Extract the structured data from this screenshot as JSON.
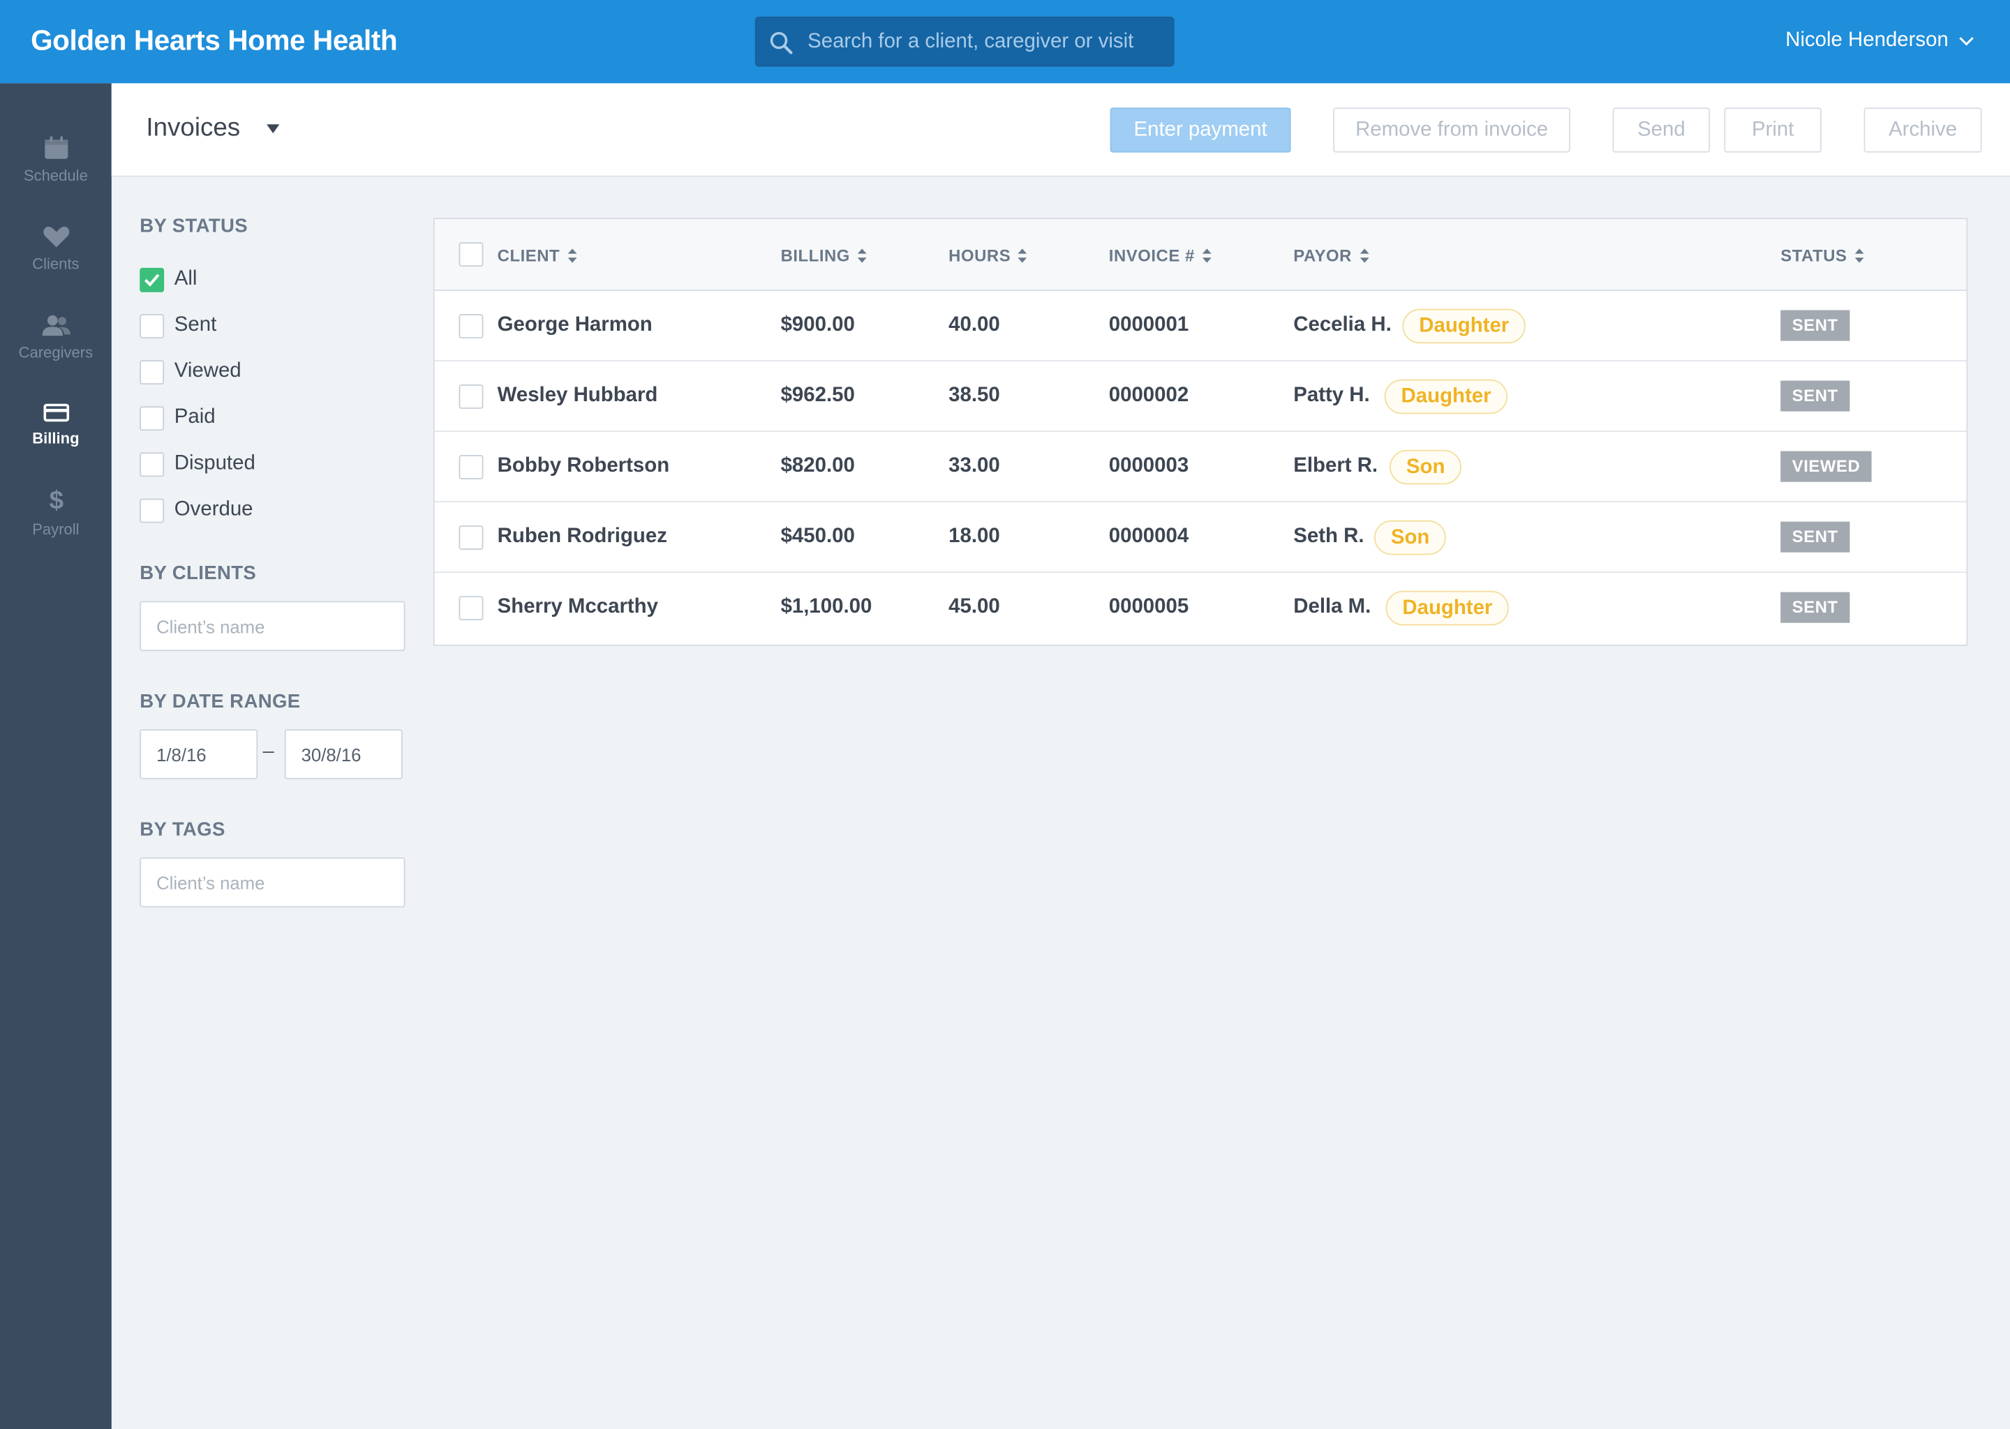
{
  "app": {
    "title": "Golden Hearts Home Health",
    "search_placeholder": "Search for a client, caregiver or visit",
    "user_name": "Nicole Henderson"
  },
  "sidebar": {
    "items": [
      {
        "label": "Schedule",
        "icon": "calendar-icon",
        "active": false
      },
      {
        "label": "Clients",
        "icon": "heart-icon",
        "active": false
      },
      {
        "label": "Caregivers",
        "icon": "people-icon",
        "active": false
      },
      {
        "label": "Billing",
        "icon": "credit-card-icon",
        "active": true
      },
      {
        "label": "Payroll",
        "icon": "dollar-icon",
        "active": false
      }
    ]
  },
  "header": {
    "title": "Invoices",
    "buttons": {
      "enter_payment": "Enter payment",
      "remove_from_invoice": "Remove from invoice",
      "send": "Send",
      "print": "Print",
      "archive": "Archive"
    }
  },
  "filters": {
    "status_heading": "BY STATUS",
    "statuses": [
      {
        "label": "All",
        "checked": true
      },
      {
        "label": "Sent",
        "checked": false
      },
      {
        "label": "Viewed",
        "checked": false
      },
      {
        "label": "Paid",
        "checked": false
      },
      {
        "label": "Disputed",
        "checked": false
      },
      {
        "label": "Overdue",
        "checked": false
      }
    ],
    "clients_heading": "BY CLIENTS",
    "clients_placeholder": "Client’s name",
    "date_heading": "BY DATE RANGE",
    "date_from": "1/8/16",
    "date_separator": "–",
    "date_to": "30/8/16",
    "tags_heading": "BY TAGS",
    "tags_placeholder": "Client’s name"
  },
  "table": {
    "columns": [
      "CLIENT",
      "BILLING",
      "HOURS",
      "INVOICE #",
      "PAYOR",
      "STATUS"
    ],
    "rows": [
      {
        "client": "George Harmon",
        "billing": "$900.00",
        "hours": "40.00",
        "invoice": "0000001",
        "payor": "Cecelia H.",
        "relation": "Daughter",
        "status": "SENT"
      },
      {
        "client": "Wesley Hubbard",
        "billing": "$962.50",
        "hours": "38.50",
        "invoice": "0000002",
        "payor": "Patty H.",
        "relation": "Daughter",
        "status": "SENT"
      },
      {
        "client": "Bobby Robertson",
        "billing": "$820.00",
        "hours": "33.00",
        "invoice": "0000003",
        "payor": "Elbert R.",
        "relation": "Son",
        "status": "VIEWED"
      },
      {
        "client": "Ruben Rodriguez",
        "billing": "$450.00",
        "hours": "18.00",
        "invoice": "0000004",
        "payor": "Seth R.",
        "relation": "Son",
        "status": "SENT"
      },
      {
        "client": "Sherry Mccarthy",
        "billing": "$1,100.00",
        "hours": "45.00",
        "invoice": "0000005",
        "payor": "Della M.",
        "relation": "Daughter",
        "status": "SENT"
      }
    ]
  },
  "colors": {
    "topbar": "#1f8edb",
    "sidebar": "#3a4b5f",
    "accent_check": "#3cbf7a",
    "tag_text": "#efb325",
    "status_badge": "#a3a9b0"
  }
}
